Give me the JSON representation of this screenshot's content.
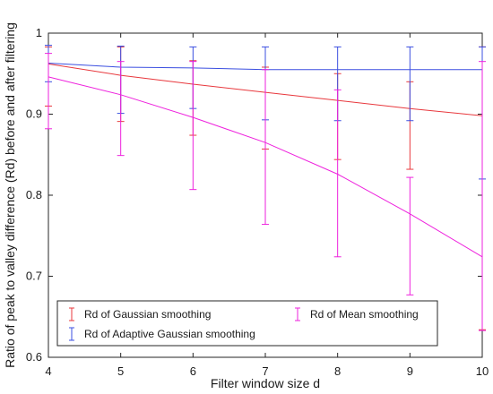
{
  "chart_data": {
    "type": "line",
    "title": "",
    "xlabel": "Filter window size d",
    "ylabel": "Ratio of peak to valley difference (Rd) before and after filtering",
    "x": [
      4,
      5,
      6,
      7,
      8,
      9,
      10
    ],
    "xlim": [
      4,
      10
    ],
    "ylim": [
      0.6,
      1.0
    ],
    "xticks": [
      "4",
      "5",
      "6",
      "7",
      "8",
      "9",
      "10"
    ],
    "yticks": [
      "0.6",
      "0.7",
      "0.8",
      "0.9",
      "1"
    ],
    "grid": false,
    "legend_position": "bottom-left",
    "series": [
      {
        "name": "Rd of Gaussian smoothing",
        "color": "#e8383d",
        "values": [
          0.962,
          0.948,
          0.937,
          0.927,
          0.917,
          0.907,
          0.898
        ],
        "error_low": [
          0.91,
          0.891,
          0.874,
          0.857,
          0.844,
          0.832,
          0.634
        ],
        "error_high": [
          0.983,
          0.983,
          0.966,
          0.958,
          0.95,
          0.94,
          0.983
        ]
      },
      {
        "name": "Rd of Adaptive Gaussian smoothing",
        "color": "#3b4fe0",
        "values": [
          0.963,
          0.958,
          0.957,
          0.955,
          0.955,
          0.955,
          0.955
        ],
        "error_low": [
          0.94,
          0.901,
          0.907,
          0.893,
          0.892,
          0.892,
          0.82
        ],
        "error_high": [
          0.985,
          0.984,
          0.983,
          0.983,
          0.983,
          0.983,
          0.983
        ]
      },
      {
        "name": "Rd of Mean smoothing",
        "color": "#ee22dd",
        "values": [
          0.946,
          0.924,
          0.896,
          0.865,
          0.826,
          0.777,
          0.724
        ],
        "error_low": [
          0.882,
          0.849,
          0.807,
          0.764,
          0.724,
          0.677,
          0.633
        ],
        "error_high": [
          0.975,
          0.965,
          0.965,
          0.955,
          0.93,
          0.822,
          0.965
        ]
      }
    ]
  }
}
